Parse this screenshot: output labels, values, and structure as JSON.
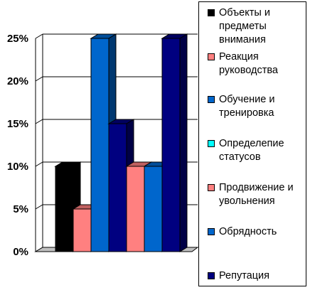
{
  "chart_data": {
    "type": "bar",
    "title": "",
    "xlabel": "",
    "ylabel": "",
    "ylim": [
      0,
      25
    ],
    "yticks": [
      "0%",
      "5%",
      "10%",
      "15%",
      "20%",
      "25%"
    ],
    "grid": true,
    "legend_position": "right",
    "series": [
      {
        "name": "Объекты и предметы внимания",
        "value": 10,
        "color": "#000000"
      },
      {
        "name": "Реакция руководства",
        "value": 5,
        "color": "#ff8080"
      },
      {
        "name": "Обучение и тренировка",
        "value": 25,
        "color": "#0066cc"
      },
      {
        "name": "Определепие статусов",
        "value": 15,
        "color": "#00ffff"
      },
      {
        "name": "Продвижение и увольнения",
        "value": 10,
        "color": "#ff8080"
      },
      {
        "name": "Обрядность",
        "value": 10,
        "color": "#0066cc"
      },
      {
        "name": "Репутация",
        "value": 25,
        "color": "#000080"
      }
    ],
    "render_colors": [
      "#000000",
      "#ff8080",
      "#0066cc",
      "#000080",
      "#ff8080",
      "#0066cc",
      "#000080"
    ]
  }
}
